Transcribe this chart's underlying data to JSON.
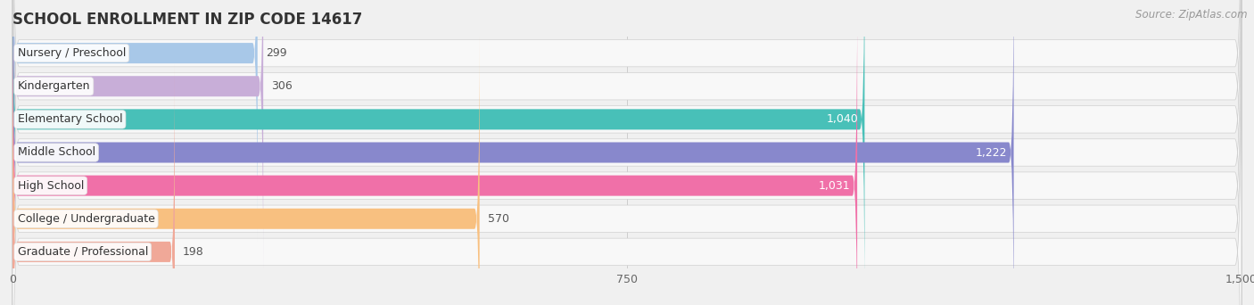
{
  "title": "SCHOOL ENROLLMENT IN ZIP CODE 14617",
  "source": "Source: ZipAtlas.com",
  "categories": [
    "Nursery / Preschool",
    "Kindergarten",
    "Elementary School",
    "Middle School",
    "High School",
    "College / Undergraduate",
    "Graduate / Professional"
  ],
  "values": [
    299,
    306,
    1040,
    1222,
    1031,
    570,
    198
  ],
  "bar_colors": [
    "#a8c8e8",
    "#c8aed8",
    "#48c0b8",
    "#8888cc",
    "#f070a8",
    "#f8c080",
    "#f0a898"
  ],
  "value_inside": [
    false,
    false,
    true,
    true,
    true,
    false,
    false
  ],
  "xlim_max": 1500,
  "xticks": [
    0,
    750,
    1500
  ],
  "xtick_labels": [
    "0",
    "750",
    "1,500"
  ],
  "background_color": "#f0f0f0",
  "bar_bg_color": "#e4e4e4",
  "row_bg_color": "#f8f8f8",
  "title_fontsize": 12,
  "source_fontsize": 8.5,
  "cat_fontsize": 9,
  "val_fontsize": 9
}
